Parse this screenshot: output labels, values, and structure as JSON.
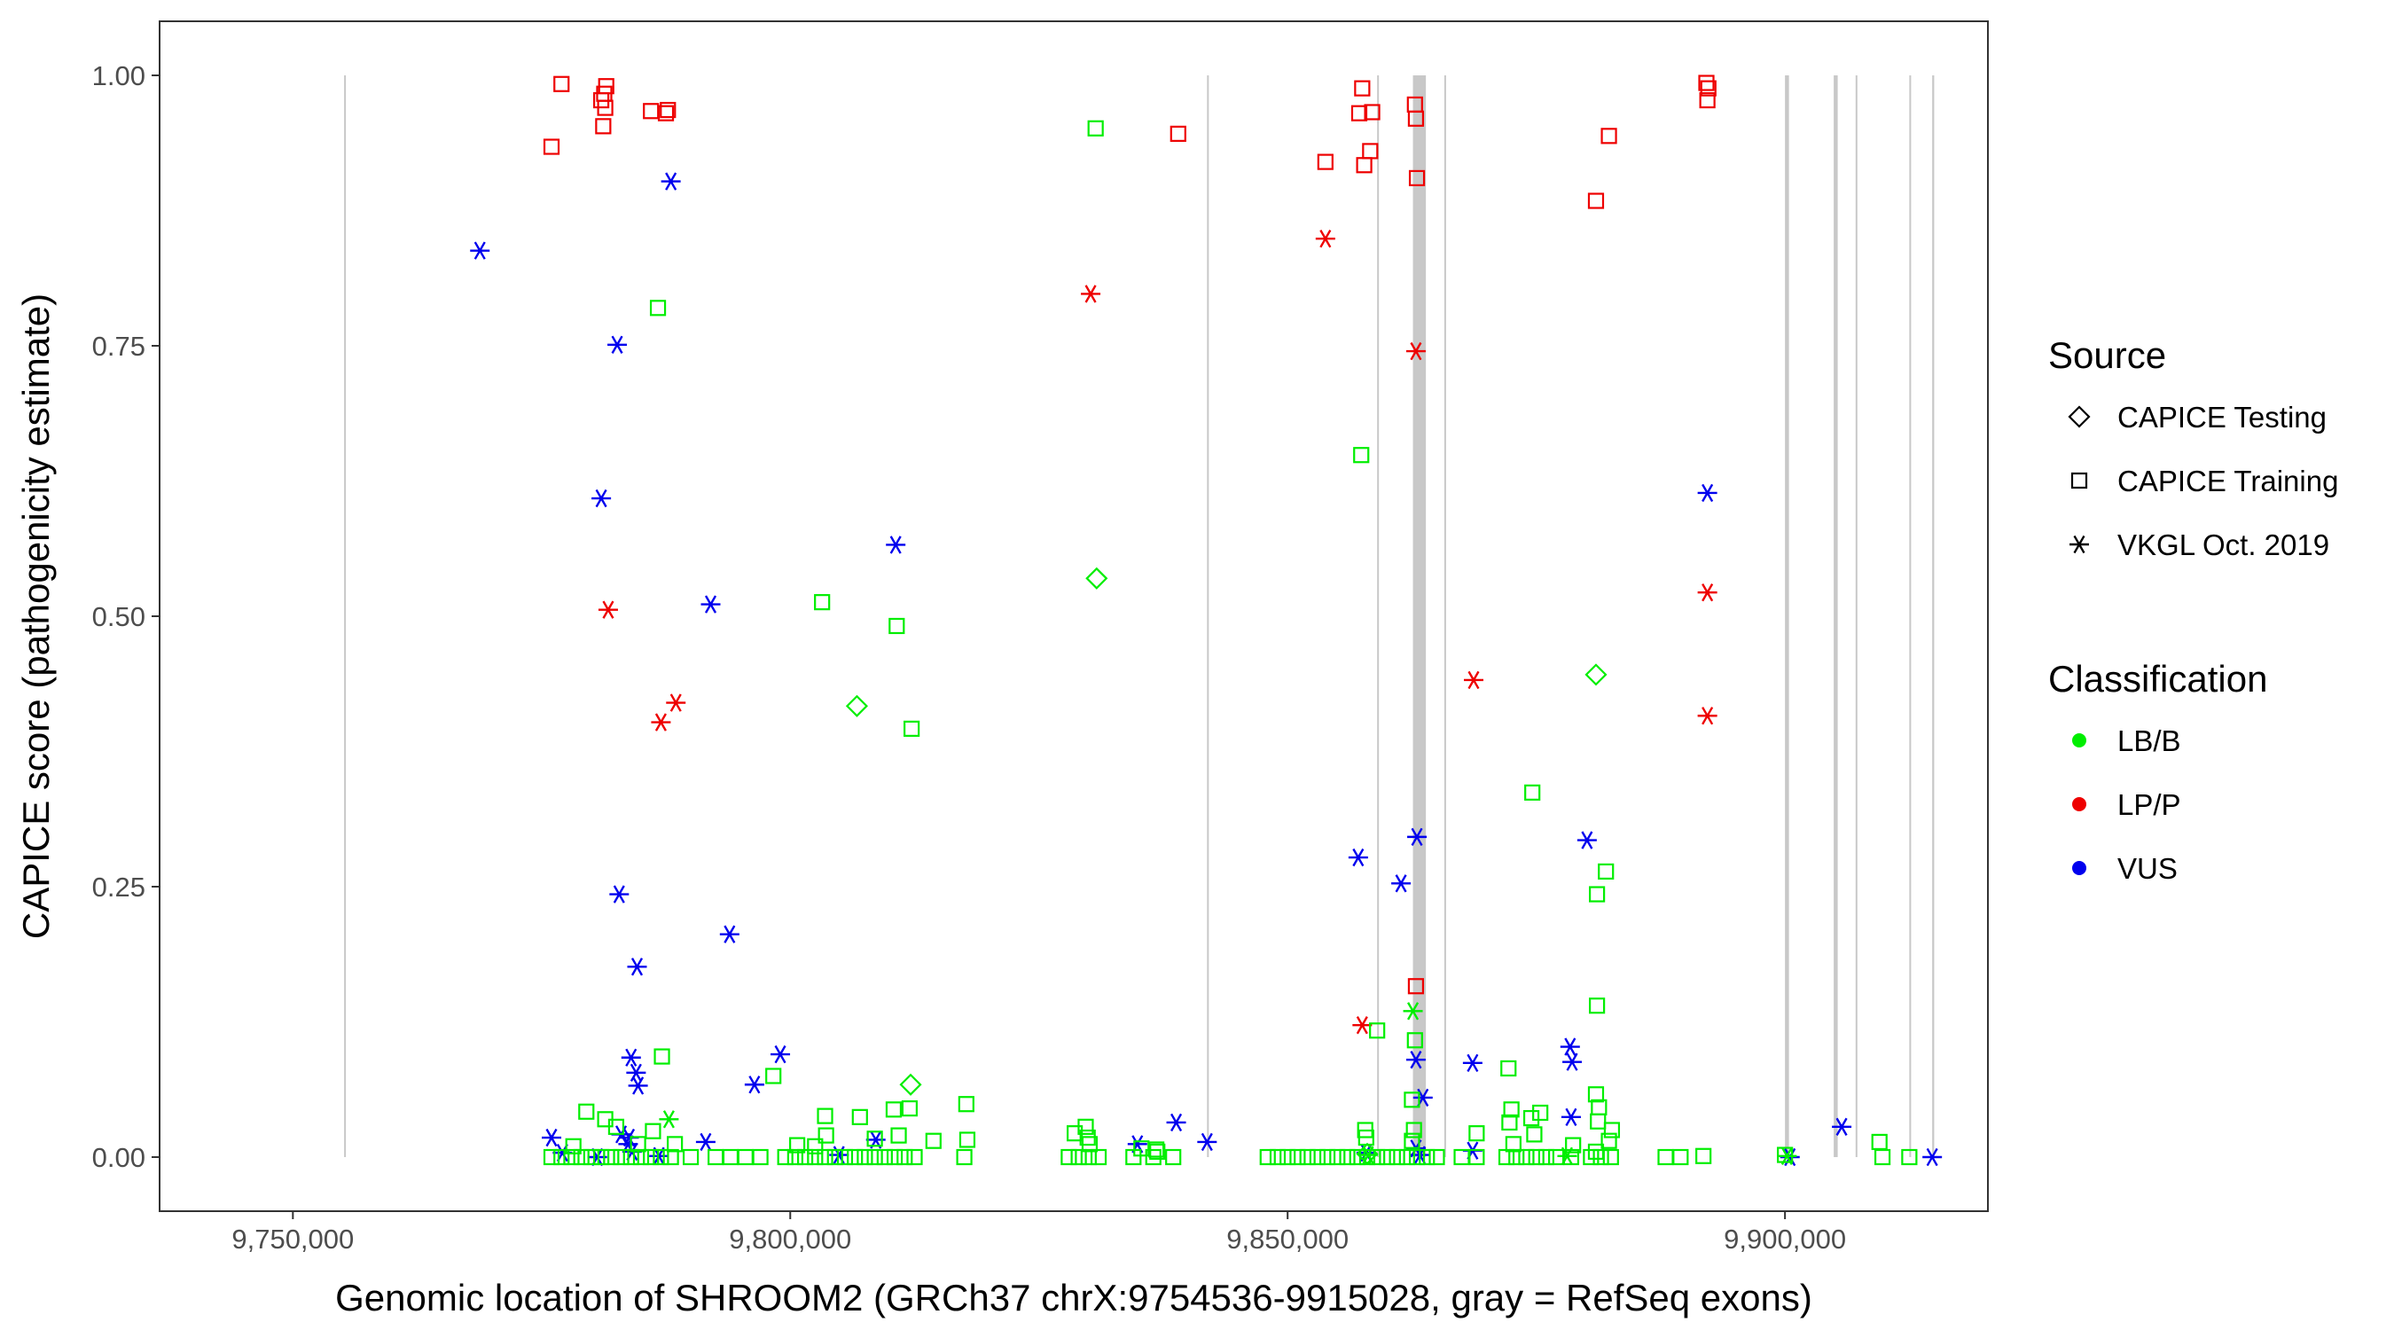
{
  "chart_data": {
    "type": "scatter",
    "title": "",
    "xlabel": "Genomic location of SHROOM2 (GRCh37 chrX:9754536-9915028, gray = RefSeq exons)",
    "ylabel": "CAPICE score (pathogenicity estimate)",
    "xlim": [
      9736600,
      9920400
    ],
    "ylim": [
      -0.05,
      1.05
    ],
    "x_ticks": [
      9750000,
      9800000,
      9850000,
      9900000
    ],
    "x_tick_labels": [
      "9,750,000",
      "9,800,000",
      "9,850,000",
      "9,900,000"
    ],
    "y_ticks": [
      0,
      0.25,
      0.5,
      0.75,
      1.0
    ],
    "y_tick_labels": [
      "0.00",
      "0.25",
      "0.50",
      "0.75",
      "1.00"
    ],
    "exons": [
      [
        9755150,
        9755250
      ],
      [
        9841900,
        9842000
      ],
      [
        9859000,
        9859100
      ],
      [
        9862600,
        9863900
      ],
      [
        9865750,
        9865850
      ],
      [
        9900000,
        9900400
      ],
      [
        9904900,
        9905300
      ],
      [
        9907100,
        9907200
      ],
      [
        9912500,
        9912600
      ],
      [
        9914800,
        9915000
      ]
    ],
    "legend": {
      "source_title": "Source",
      "source_items": [
        {
          "label": "CAPICE Testing",
          "shape": "diamond"
        },
        {
          "label": "CAPICE Training",
          "shape": "square"
        },
        {
          "label": "VKGL Oct. 2019",
          "shape": "asterisk"
        }
      ],
      "class_title": "Classification",
      "class_items": [
        {
          "label": "LB/B",
          "color": "#00ee00"
        },
        {
          "label": "LP/P",
          "color": "#ee0000"
        },
        {
          "label": "VUS",
          "color": "#0000ee"
        }
      ]
    },
    "series": [
      {
        "name": "CAPICE Training LP/P",
        "shape": "square",
        "color": "#ee0000",
        "points": [
          [
            9776000,
            0.934
          ],
          [
            9777000,
            0.992
          ],
          [
            9781000,
            0.977
          ],
          [
            9781300,
            0.983
          ],
          [
            9781500,
            0.99
          ],
          [
            9781400,
            0.97
          ],
          [
            9781200,
            0.953
          ],
          [
            9786000,
            0.967
          ],
          [
            9787500,
            0.965
          ],
          [
            9787700,
            0.968
          ],
          [
            9839000,
            0.946
          ],
          [
            9853800,
            0.92
          ],
          [
            9857500,
            0.988
          ],
          [
            9857200,
            0.965
          ],
          [
            9857700,
            0.917
          ],
          [
            9858300,
            0.93
          ],
          [
            9858500,
            0.966
          ],
          [
            9862800,
            0.973
          ],
          [
            9862900,
            0.96
          ],
          [
            9863000,
            0.905
          ],
          [
            9881000,
            0.884
          ],
          [
            9882300,
            0.944
          ],
          [
            9892100,
            0.993
          ],
          [
            9892300,
            0.988
          ],
          [
            9892200,
            0.977
          ],
          [
            9862900,
            0.158
          ]
        ]
      },
      {
        "name": "VKGL LP/P",
        "shape": "asterisk",
        "color": "#ee0000",
        "points": [
          [
            9781700,
            0.506
          ],
          [
            9787000,
            0.402
          ],
          [
            9788500,
            0.42
          ],
          [
            9830200,
            0.798
          ],
          [
            9853800,
            0.849
          ],
          [
            9862900,
            0.745
          ],
          [
            9868700,
            0.441
          ],
          [
            9892200,
            0.522
          ],
          [
            9892200,
            0.408
          ],
          [
            9857500,
            0.122
          ]
        ]
      },
      {
        "name": "VKGL VUS",
        "shape": "asterisk",
        "color": "#0000ee",
        "points": [
          [
            9768800,
            0.838
          ],
          [
            9788000,
            0.902
          ],
          [
            9782600,
            0.751
          ],
          [
            9781000,
            0.609
          ],
          [
            9810600,
            0.566
          ],
          [
            9792000,
            0.511
          ],
          [
            9782800,
            0.243
          ],
          [
            9793900,
            0.206
          ],
          [
            9784600,
            0.176
          ],
          [
            9784000,
            0.092
          ],
          [
            9784500,
            0.078
          ],
          [
            9784700,
            0.066
          ],
          [
            9799000,
            0.095
          ],
          [
            9796400,
            0.067
          ],
          [
            9776000,
            0.018
          ],
          [
            9777100,
            0.004
          ],
          [
            9780600,
            0.0
          ],
          [
            9783000,
            0.021
          ],
          [
            9783800,
            0.018
          ],
          [
            9783700,
            0.012
          ],
          [
            9786800,
            0.001
          ],
          [
            9784100,
            0.005
          ],
          [
            9791500,
            0.014
          ],
          [
            9804900,
            0.002
          ],
          [
            9808600,
            0.016
          ],
          [
            9834900,
            0.012
          ],
          [
            9838800,
            0.032
          ],
          [
            9841900,
            0.014
          ],
          [
            9857100,
            0.277
          ],
          [
            9861400,
            0.253
          ],
          [
            9863000,
            0.296
          ],
          [
            9863600,
            0.055
          ],
          [
            9862900,
            0.09
          ],
          [
            9868600,
            0.087
          ],
          [
            9878400,
            0.102
          ],
          [
            9878600,
            0.088
          ],
          [
            9878500,
            0.037
          ],
          [
            9880100,
            0.293
          ],
          [
            9892200,
            0.614
          ],
          [
            9862900,
            0.008
          ],
          [
            9863300,
            0.002
          ],
          [
            9857900,
            0.004
          ],
          [
            9868600,
            0.006
          ],
          [
            9905700,
            0.028
          ],
          [
            9914800,
            0.0
          ],
          [
            9900500,
            0.0
          ]
        ]
      },
      {
        "name": "VKGL LB/B",
        "shape": "asterisk",
        "color": "#00ee00",
        "points": [
          [
            9787800,
            0.035
          ],
          [
            9862600,
            0.135
          ],
          [
            9900200,
            0.001
          ],
          [
            9878100,
            0.001
          ],
          [
            9858100,
            0.002
          ]
        ]
      },
      {
        "name": "CAPICE Testing LB/B",
        "shape": "diamond",
        "color": "#00ee00",
        "points": [
          [
            9830800,
            0.535
          ],
          [
            9806700,
            0.417
          ],
          [
            9881000,
            0.446
          ],
          [
            9812100,
            0.067
          ],
          [
            9858000,
            0.003
          ]
        ]
      },
      {
        "name": "CAPICE Training LB/B",
        "shape": "square",
        "color": "#00ee00",
        "points": [
          [
            9830700,
            0.951
          ],
          [
            9786700,
            0.785
          ],
          [
            9857400,
            0.649
          ],
          [
            9803200,
            0.513
          ],
          [
            9810700,
            0.491
          ],
          [
            9812200,
            0.396
          ],
          [
            9874600,
            0.337
          ],
          [
            9882000,
            0.264
          ],
          [
            9881100,
            0.243
          ],
          [
            9881100,
            0.14
          ],
          [
            9859000,
            0.117
          ],
          [
            9862800,
            0.108
          ],
          [
            9862500,
            0.053
          ],
          [
            9872200,
            0.082
          ],
          [
            9798300,
            0.075
          ],
          [
            9787100,
            0.093
          ],
          [
            9817700,
            0.049
          ],
          [
            9779500,
            0.042
          ],
          [
            9781400,
            0.035
          ],
          [
            9782500,
            0.028
          ],
          [
            9786200,
            0.024
          ],
          [
            9803500,
            0.038
          ],
          [
            9807000,
            0.037
          ],
          [
            9810400,
            0.044
          ],
          [
            9812000,
            0.045
          ],
          [
            9814400,
            0.015
          ],
          [
            9817800,
            0.016
          ],
          [
            9828600,
            0.022
          ],
          [
            9829700,
            0.028
          ],
          [
            9829900,
            0.018
          ],
          [
            9830100,
            0.012
          ],
          [
            9835300,
            0.008
          ],
          [
            9836800,
            0.007
          ],
          [
            9857800,
            0.025
          ],
          [
            9857900,
            0.018
          ],
          [
            9862700,
            0.025
          ],
          [
            9862500,
            0.015
          ],
          [
            9869000,
            0.022
          ],
          [
            9872500,
            0.044
          ],
          [
            9872300,
            0.032
          ],
          [
            9874500,
            0.036
          ],
          [
            9875400,
            0.041
          ],
          [
            9874800,
            0.021
          ],
          [
            9881000,
            0.058
          ],
          [
            9881300,
            0.046
          ],
          [
            9881200,
            0.033
          ],
          [
            9882600,
            0.025
          ],
          [
            9882300,
            0.015
          ],
          [
            9909500,
            0.014
          ],
          [
            9810900,
            0.02
          ],
          [
            9808500,
            0.017
          ],
          [
            9802500,
            0.01
          ],
          [
            9800700,
            0.011
          ],
          [
            9784700,
            0.012
          ],
          [
            9778200,
            0.01
          ],
          [
            9788400,
            0.012
          ],
          [
            9803600,
            0.02
          ],
          [
            9836900,
            0.005
          ],
          [
            9872700,
            0.012
          ],
          [
            9878700,
            0.011
          ],
          [
            9881000,
            0.005
          ],
          [
            9900000,
            0.002
          ],
          [
            9909800,
            0.0
          ],
          [
            9912500,
            0.0
          ],
          [
            9888000,
            0.0
          ],
          [
            9889500,
            0.0
          ],
          [
            9891800,
            0.001
          ],
          [
            9776000,
            0.0
          ],
          [
            9777000,
            0.0
          ],
          [
            9778000,
            0.0
          ],
          [
            9779000,
            0.0
          ],
          [
            9780000,
            0.0
          ],
          [
            9781000,
            0.0
          ],
          [
            9782000,
            0.0
          ],
          [
            9783000,
            0.0
          ],
          [
            9784000,
            0.0
          ],
          [
            9785000,
            0.0
          ],
          [
            9786000,
            0.0
          ],
          [
            9787000,
            0.0
          ],
          [
            9788000,
            0.0
          ],
          [
            9790000,
            0.0
          ],
          [
            9792500,
            0.0
          ],
          [
            9794000,
            0.0
          ],
          [
            9795500,
            0.0
          ],
          [
            9797000,
            0.0
          ],
          [
            9799500,
            0.0
          ],
          [
            9800500,
            0.0
          ],
          [
            9801500,
            0.0
          ],
          [
            9802500,
            0.0
          ],
          [
            9803500,
            0.0
          ],
          [
            9804500,
            0.0
          ],
          [
            9805500,
            0.0
          ],
          [
            9806500,
            0.0
          ],
          [
            9807500,
            0.0
          ],
          [
            9808500,
            0.0
          ],
          [
            9809500,
            0.0
          ],
          [
            9810500,
            0.0
          ],
          [
            9811500,
            0.0
          ],
          [
            9812500,
            0.0
          ],
          [
            9817500,
            0.0
          ],
          [
            9828000,
            0.0
          ],
          [
            9829000,
            0.0
          ],
          [
            9830000,
            0.0
          ],
          [
            9831000,
            0.0
          ],
          [
            9834500,
            0.0
          ],
          [
            9836500,
            0.0
          ],
          [
            9838500,
            0.0
          ],
          [
            9848000,
            0.0
          ],
          [
            9849000,
            0.0
          ],
          [
            9850000,
            0.0
          ],
          [
            9851000,
            0.0
          ],
          [
            9852000,
            0.0
          ],
          [
            9853000,
            0.0
          ],
          [
            9854000,
            0.0
          ],
          [
            9855000,
            0.0
          ],
          [
            9856000,
            0.0
          ],
          [
            9857000,
            0.0
          ],
          [
            9858000,
            0.0
          ],
          [
            9859000,
            0.0
          ],
          [
            9860000,
            0.0
          ],
          [
            9861000,
            0.0
          ],
          [
            9862000,
            0.0
          ],
          [
            9863000,
            0.0
          ],
          [
            9864000,
            0.0
          ],
          [
            9865000,
            0.0
          ],
          [
            9867500,
            0.0
          ],
          [
            9869000,
            0.0
          ],
          [
            9872000,
            0.0
          ],
          [
            9873000,
            0.0
          ],
          [
            9874000,
            0.0
          ],
          [
            9875000,
            0.0
          ],
          [
            9876000,
            0.0
          ],
          [
            9877000,
            0.0
          ],
          [
            9878500,
            0.0
          ],
          [
            9880500,
            0.0
          ],
          [
            9881500,
            0.0
          ],
          [
            9882500,
            0.0
          ]
        ]
      }
    ]
  }
}
